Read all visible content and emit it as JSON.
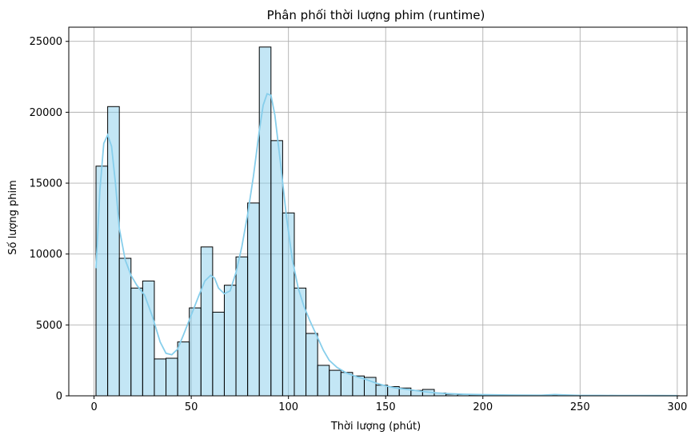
{
  "chart_data": {
    "type": "bar",
    "title": "Phân phối thời lượng phim (runtime)",
    "xlabel": "Thời lượng (phút)",
    "ylabel": "Số lượng phim",
    "xlim": [
      -13,
      305
    ],
    "ylim": [
      0,
      26000
    ],
    "xticks": [
      0,
      50,
      100,
      150,
      200,
      250,
      300
    ],
    "yticks": [
      0,
      5000,
      10000,
      15000,
      20000,
      25000
    ],
    "grid": true,
    "bin_width": 6,
    "bin_start": 1,
    "values": [
      16200,
      20400,
      9700,
      7600,
      8100,
      2600,
      2650,
      3800,
      6200,
      10500,
      5900,
      7800,
      9800,
      13600,
      24600,
      18000,
      12900,
      7600,
      4400,
      2150,
      1800,
      1650,
      1400,
      1300,
      750,
      650,
      550,
      380,
      450,
      200,
      110,
      90,
      70,
      60,
      50,
      40,
      35,
      30,
      25,
      60,
      40,
      25,
      20,
      15,
      15,
      10,
      10,
      8,
      8,
      6
    ],
    "bar_color": "#87CEEB",
    "kde_color": "#87CEEB",
    "kde": [
      [
        1,
        9000
      ],
      [
        3,
        14500
      ],
      [
        5,
        17800
      ],
      [
        7,
        18400
      ],
      [
        9,
        17600
      ],
      [
        11,
        15000
      ],
      [
        13,
        11800
      ],
      [
        16,
        9600
      ],
      [
        19,
        8500
      ],
      [
        22,
        7800
      ],
      [
        26,
        7100
      ],
      [
        30,
        5600
      ],
      [
        34,
        3800
      ],
      [
        37,
        3000
      ],
      [
        40,
        2900
      ],
      [
        43,
        3300
      ],
      [
        46,
        4300
      ],
      [
        50,
        5700
      ],
      [
        54,
        7100
      ],
      [
        57,
        8100
      ],
      [
        60,
        8500
      ],
      [
        62,
        8300
      ],
      [
        64,
        7600
      ],
      [
        67,
        7200
      ],
      [
        70,
        7400
      ],
      [
        73,
        8700
      ],
      [
        76,
        10500
      ],
      [
        79,
        12800
      ],
      [
        82,
        15500
      ],
      [
        85,
        18700
      ],
      [
        87,
        20500
      ],
      [
        89,
        21300
      ],
      [
        91,
        21200
      ],
      [
        93,
        19800
      ],
      [
        96,
        16300
      ],
      [
        99,
        12600
      ],
      [
        102,
        9600
      ],
      [
        105,
        7600
      ],
      [
        108,
        6300
      ],
      [
        111,
        5300
      ],
      [
        115,
        4100
      ],
      [
        118,
        3200
      ],
      [
        121,
        2500
      ],
      [
        125,
        2000
      ],
      [
        130,
        1600
      ],
      [
        135,
        1350
      ],
      [
        140,
        1150
      ],
      [
        145,
        900
      ],
      [
        150,
        700
      ],
      [
        155,
        560
      ],
      [
        160,
        470
      ],
      [
        165,
        380
      ],
      [
        170,
        290
      ],
      [
        175,
        220
      ],
      [
        180,
        170
      ],
      [
        190,
        110
      ],
      [
        200,
        80
      ],
      [
        210,
        60
      ],
      [
        220,
        45
      ],
      [
        230,
        40
      ],
      [
        237,
        90
      ],
      [
        242,
        60
      ],
      [
        250,
        30
      ],
      [
        260,
        25
      ],
      [
        270,
        22
      ],
      [
        280,
        20
      ],
      [
        290,
        18
      ],
      [
        300,
        15
      ]
    ]
  }
}
